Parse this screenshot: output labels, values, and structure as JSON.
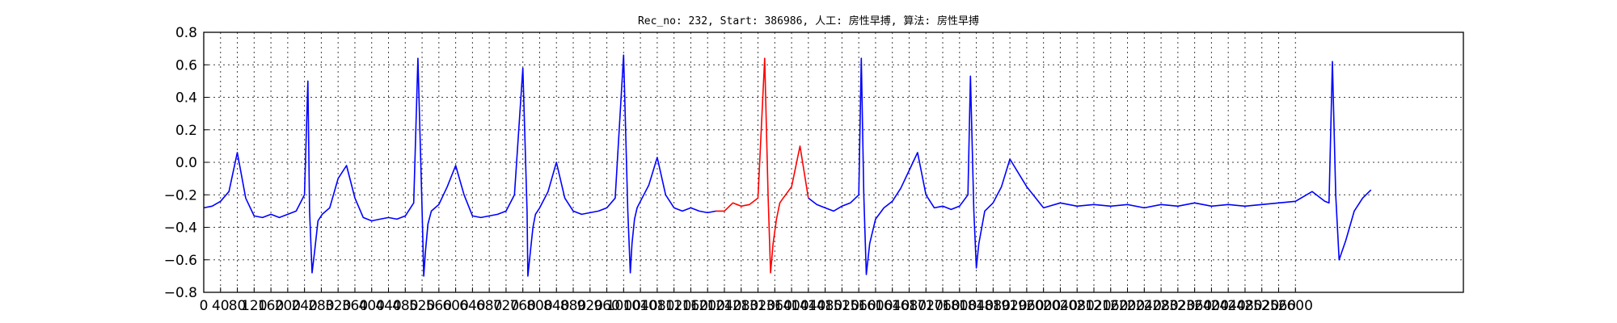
{
  "chart_data": {
    "type": "line",
    "title": "Rec_no: 232, Start: 386986, 人工: 房性早搏, 算法: 房性早搏",
    "xlabel": "",
    "ylabel": "",
    "xlim": [
      0,
      3000
    ],
    "ylim": [
      -0.8,
      0.8
    ],
    "x_ticks": [
      0,
      40,
      80,
      120,
      160,
      200,
      240,
      280,
      320,
      360,
      400,
      440,
      480,
      520,
      560,
      600,
      640,
      680,
      720,
      760,
      800,
      840,
      880,
      920,
      960,
      1000,
      1040,
      1080,
      1120,
      1160,
      1200,
      1240,
      1280,
      1320,
      1360,
      1400,
      1440,
      1480,
      1520,
      1560,
      1600,
      1640,
      1680,
      1720,
      1760,
      1800,
      1840,
      1880,
      1920,
      1960,
      2000,
      2040,
      2080,
      2120,
      2160,
      2200,
      2240,
      2280,
      2320,
      2360,
      2400,
      2440,
      2480,
      2520,
      2560,
      2600
    ],
    "y_ticks": [
      "0.8",
      "0.6",
      "0.4",
      "0.2",
      "0.0",
      "−0.2",
      "−0.4",
      "−0.6",
      "−0.8"
    ],
    "y_tick_values": [
      0.8,
      0.6,
      0.4,
      0.2,
      0.0,
      -0.2,
      -0.4,
      -0.6,
      -0.8
    ],
    "grid": true,
    "series": [
      {
        "color": "#0000ff",
        "segments": [
          {
            "x": [
              0,
              20,
              40,
              60,
              80,
              100,
              120,
              140,
              160,
              180,
              200,
              220,
              240,
              248,
              252,
              258,
              264,
              272,
              282,
              300,
              320,
              340,
              360,
              380,
              400,
              420,
              440,
              460,
              480,
              500,
              510,
              520,
              524,
              528,
              534,
              542,
              560,
              580,
              600,
              620,
              640,
              660,
              680,
              700,
              720,
              740,
              760,
              770,
              772,
              778,
              784,
              790,
              800,
              820,
              840,
              860,
              880,
              900,
              920,
              940,
              960,
              980,
              1000,
              1010,
              1016,
              1020,
              1026,
              1032,
              1040,
              1060,
              1080,
              1100,
              1120,
              1140,
              1160,
              1180,
              1200,
              1220
            ],
            "y": [
              -0.28,
              -0.27,
              -0.24,
              -0.18,
              0.06,
              -0.22,
              -0.33,
              -0.34,
              -0.32,
              -0.34,
              -0.32,
              -0.3,
              -0.2,
              0.5,
              -0.3,
              -0.68,
              -0.55,
              -0.36,
              -0.32,
              -0.28,
              -0.1,
              -0.02,
              -0.22,
              -0.34,
              -0.36,
              -0.35,
              -0.34,
              -0.35,
              -0.33,
              -0.25,
              0.64,
              -0.3,
              -0.7,
              -0.55,
              -0.38,
              -0.3,
              -0.26,
              -0.15,
              -0.02,
              -0.2,
              -0.33,
              -0.34,
              -0.33,
              -0.32,
              -0.3,
              -0.2,
              0.58,
              -0.3,
              -0.7,
              -0.55,
              -0.4,
              -0.32,
              -0.28,
              -0.18,
              0.0,
              -0.22,
              -0.3,
              -0.32,
              -0.31,
              -0.3,
              -0.28,
              -0.22,
              0.66,
              -0.3,
              -0.68,
              -0.5,
              -0.35,
              -0.28,
              -0.24,
              -0.14,
              0.03,
              -0.2,
              -0.28,
              -0.3,
              -0.28,
              -0.3,
              -0.31,
              -0.3
            ]
          },
          {
            "x": [
              1440,
              1460,
              1480,
              1500,
              1520,
              1540,
              1560,
              1566,
              1572,
              1578,
              1586,
              1600,
              1620,
              1640,
              1660,
              1680,
              1700,
              1720,
              1740,
              1760,
              1780,
              1800,
              1820,
              1826,
              1834,
              1840,
              1846,
              1860,
              1880,
              1900,
              1920,
              1960,
              2000,
              2040,
              2080,
              2120,
              2160,
              2200,
              2240,
              2280,
              2320,
              2360,
              2400,
              2440,
              2480,
              2520,
              2560,
              2600,
              2640,
              2670,
              2680,
              2688,
              2696,
              2704,
              2720,
              2740,
              2760,
              2780
            ],
            "y": [
              -0.22,
              -0.26,
              -0.28,
              -0.3,
              -0.27,
              -0.25,
              -0.2,
              0.64,
              -0.2,
              -0.69,
              -0.5,
              -0.35,
              -0.28,
              -0.24,
              -0.16,
              -0.05,
              0.06,
              -0.2,
              -0.28,
              -0.27,
              -0.29,
              -0.27,
              -0.2,
              0.53,
              -0.3,
              -0.65,
              -0.5,
              -0.3,
              -0.25,
              -0.15,
              0.02,
              -0.15,
              -0.28,
              -0.25,
              -0.27,
              -0.26,
              -0.27,
              -0.26,
              -0.28,
              -0.26,
              -0.27,
              -0.25,
              -0.27,
              -0.26,
              -0.27,
              -0.26,
              -0.25,
              -0.24,
              -0.18,
              -0.24,
              -0.25,
              0.62,
              -0.2,
              -0.6,
              -0.48,
              -0.3,
              -0.22,
              -0.17
            ]
          }
        ]
      },
      {
        "color": "#ff0000",
        "segments": [
          {
            "x": [
              1220,
              1240,
              1260,
              1280,
              1300,
              1320,
              1336,
              1344,
              1350,
              1356,
              1364,
              1372,
              1380,
              1400,
              1420,
              1440
            ],
            "y": [
              -0.3,
              -0.3,
              -0.25,
              -0.27,
              -0.26,
              -0.22,
              0.64,
              -0.2,
              -0.68,
              -0.5,
              -0.35,
              -0.25,
              -0.22,
              -0.15,
              0.1,
              -0.22
            ]
          }
        ]
      }
    ]
  }
}
